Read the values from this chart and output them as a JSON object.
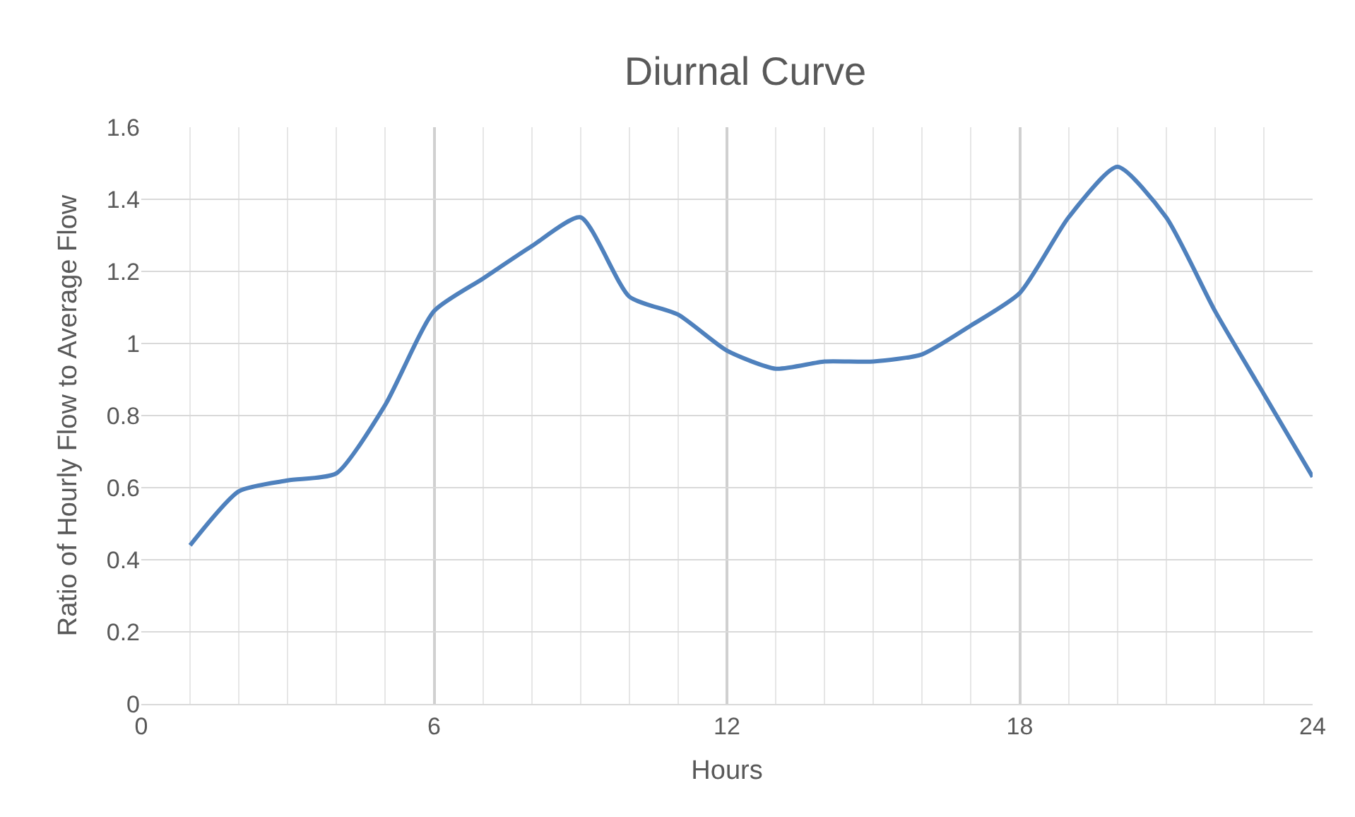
{
  "chart_data": {
    "type": "line",
    "title": "Diurnal Curve",
    "xlabel": "Hours",
    "ylabel": "Ratio of Hourly Flow to Average Flow",
    "x": [
      1,
      2,
      3,
      4,
      5,
      6,
      7,
      8,
      9,
      10,
      11,
      12,
      13,
      14,
      15,
      16,
      17,
      18,
      19,
      20,
      21,
      22,
      23,
      24
    ],
    "series": [
      {
        "color": "#4f81bd",
        "values": [
          0.44,
          0.59,
          0.62,
          0.64,
          0.83,
          1.09,
          1.18,
          1.27,
          1.35,
          1.13,
          1.08,
          0.98,
          0.93,
          0.95,
          0.95,
          0.97,
          1.05,
          1.14,
          1.35,
          1.49,
          1.35,
          1.09,
          0.86,
          0.63
        ]
      }
    ],
    "xlim": [
      0,
      24
    ],
    "xticks": [
      0,
      {
        "value": 1,
        "label": null
      },
      {
        "value": 2,
        "label": null
      },
      {
        "value": 3,
        "label": null
      },
      {
        "value": 4,
        "label": null
      },
      {
        "value": 5,
        "label": null
      },
      6,
      {
        "value": 7,
        "label": null
      },
      {
        "value": 8,
        "label": null
      },
      {
        "value": 9,
        "label": null
      },
      {
        "value": 10,
        "label": null
      },
      {
        "value": 11,
        "label": null
      },
      12,
      {
        "value": 13,
        "label": null
      },
      {
        "value": 14,
        "label": null
      },
      {
        "value": 15,
        "label": null
      },
      {
        "value": 16,
        "label": null
      },
      {
        "value": 17,
        "label": null
      },
      18,
      {
        "value": 19,
        "label": null
      },
      {
        "value": 20,
        "label": null
      },
      {
        "value": 21,
        "label": null
      },
      {
        "value": 22,
        "label": null
      },
      {
        "value": 23,
        "label": null
      },
      24
    ],
    "ylim": [
      0,
      1.6
    ],
    "yticks": [
      0,
      0.2,
      0.4,
      0.6,
      0.8,
      1,
      1.2,
      1.4,
      1.6
    ],
    "grid": true,
    "legend": false,
    "marker": "none",
    "line_style": "solid"
  }
}
